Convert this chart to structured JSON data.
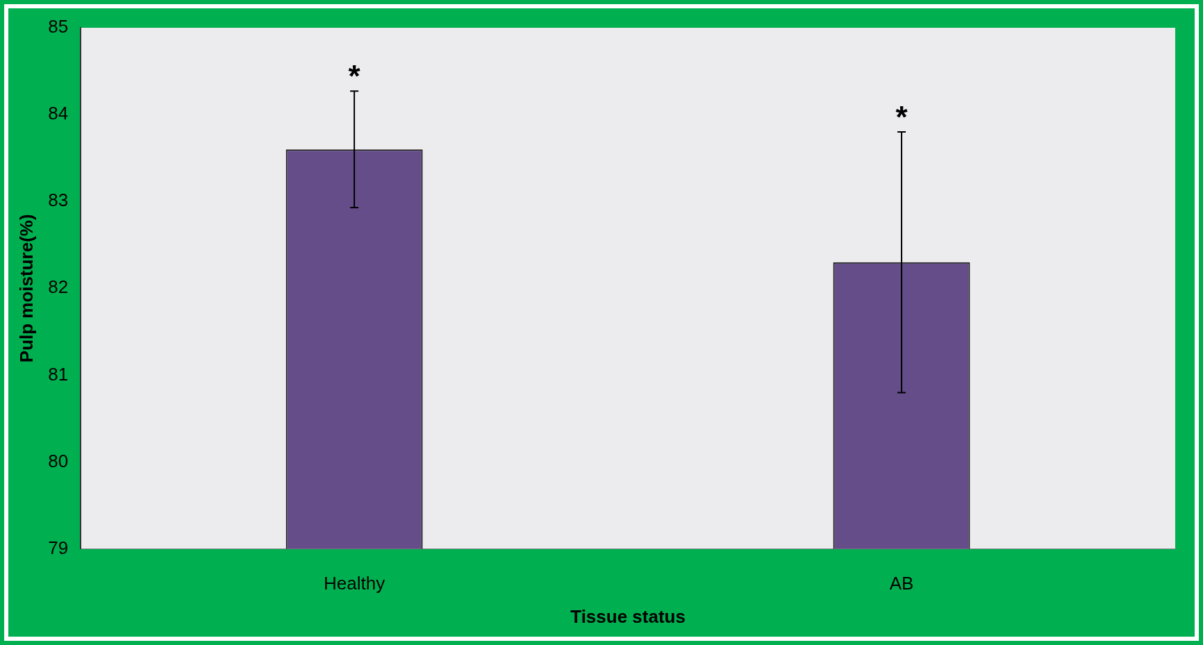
{
  "chart_data": {
    "type": "bar",
    "xlabel": "Tissue status",
    "ylabel": "Pulp moisture(%)",
    "categories": [
      "Healthy",
      "AB"
    ],
    "values": [
      83.6,
      82.3
    ],
    "errors": [
      0.67,
      1.5
    ],
    "color": "#654d8a",
    "ylim": [
      79,
      85
    ],
    "yticks": [
      79,
      80,
      81,
      82,
      83,
      84,
      85
    ],
    "grid": false,
    "legend": false,
    "annotations": [
      "*",
      "*"
    ]
  }
}
